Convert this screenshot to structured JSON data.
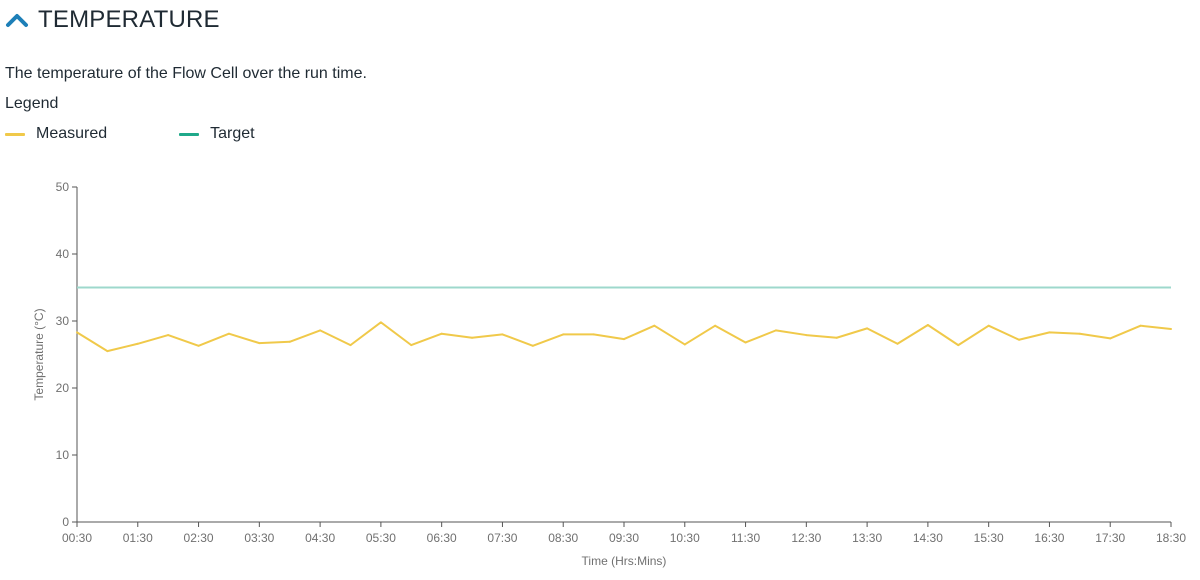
{
  "section": {
    "title": "TEMPERATURE",
    "description": "The temperature of the Flow Cell over the run time.",
    "legend_title": "Legend"
  },
  "colors": {
    "accent": "#1d7fb8",
    "measured": "#f0c94a",
    "target": "#9ed8cc",
    "target_legend": "#1fa98a",
    "axis": "#555555"
  },
  "chart_data": {
    "type": "line",
    "xlabel": "Time (Hrs:Mins)",
    "ylabel": "Temperature (°C)",
    "ylim": [
      0,
      50
    ],
    "yticks": [
      0,
      10,
      20,
      30,
      40,
      50
    ],
    "x_tick_labels": [
      "00:30",
      "01:30",
      "02:30",
      "03:30",
      "04:30",
      "05:30",
      "06:30",
      "07:30",
      "08:30",
      "09:30",
      "10:30",
      "11:30",
      "12:30",
      "13:30",
      "14:30",
      "15:30",
      "16:30",
      "17:30",
      "18:30"
    ],
    "x_start_hours": 0.5,
    "x_end_hours": 18.5,
    "grid": false,
    "legend_position": "top-left",
    "series": [
      {
        "name": "Measured",
        "x_hours": [
          0.5,
          1,
          1.5,
          2,
          2.5,
          3,
          3.5,
          4,
          4.5,
          5,
          5.5,
          6,
          6.5,
          7,
          7.5,
          8,
          8.5,
          9,
          9.5,
          10,
          10.5,
          11,
          11.5,
          12,
          12.5,
          13,
          13.5,
          14,
          14.5,
          15,
          15.5,
          16,
          16.5,
          17,
          17.5,
          18,
          18.5
        ],
        "values": [
          28.3,
          25.5,
          26.6,
          27.9,
          26.3,
          28.1,
          26.7,
          26.9,
          28.6,
          26.4,
          29.8,
          26.4,
          28.1,
          27.5,
          28.0,
          26.3,
          28.0,
          28.0,
          27.3,
          29.3,
          26.5,
          29.3,
          26.8,
          28.6,
          27.9,
          27.5,
          28.9,
          26.6,
          29.4,
          26.4,
          29.3,
          27.2,
          28.3,
          28.1,
          27.4,
          29.3,
          28.8
        ]
      },
      {
        "name": "Target",
        "x_hours": [
          0.5,
          18.5
        ],
        "values": [
          35,
          35
        ]
      }
    ]
  }
}
